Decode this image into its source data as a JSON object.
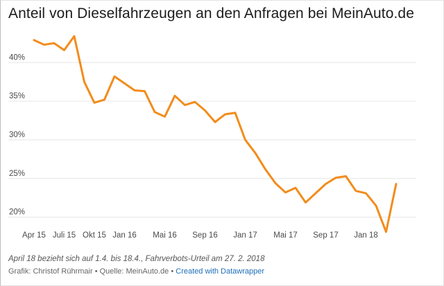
{
  "title": "Anteil von Dieselfahrzeugen an den Anfragen bei MeinAuto.de",
  "note": "April 18 bezieht sich auf 1.4. bis 18.4., Fahrverbots-Urteil am 27. 2. 2018",
  "credits": {
    "author": "Grafik: Christof Rührmair",
    "sep1": " • ",
    "source": "Quelle: MeinAuto.de",
    "sep2": " • ",
    "link": "Created with Datawrapper"
  },
  "colors": {
    "line": "#f28c1c",
    "grid": "#e6e6e6"
  },
  "chart_data": {
    "type": "line",
    "title": "Anteil von Dieselfahrzeugen an den Anfragen bei MeinAuto.de",
    "xlabel": "",
    "ylabel": "",
    "ylim": [
      18,
      44.5
    ],
    "y_ticks": [
      20,
      25,
      30,
      35,
      40
    ],
    "y_tick_labels": [
      "20%",
      "25%",
      "30%",
      "35%",
      "40%"
    ],
    "x_tick_labels": [
      "Apr 15",
      "Juli 15",
      "Okt 15",
      "Jan 16",
      "Mai 16",
      "Sep 16",
      "Jan 17",
      "Mai 17",
      "Sep 17",
      "Jan 18"
    ],
    "x_tick_positions": [
      0,
      3,
      6,
      9,
      13,
      17,
      21,
      25,
      29,
      33
    ],
    "grid": true,
    "legend": "none",
    "x": [
      "Apr 15",
      "Mai 15",
      "Jun 15",
      "Juli 15",
      "Aug 15",
      "Sep 15",
      "Okt 15",
      "Nov 15",
      "Dez 15",
      "Jan 16",
      "Feb 16",
      "Mär 16",
      "Apr 16",
      "Mai 16",
      "Jun 16",
      "Jul 16",
      "Aug 16",
      "Sep 16",
      "Okt 16",
      "Nov 16",
      "Dez 16",
      "Jan 17",
      "Feb 17",
      "Mär 17",
      "Apr 17",
      "Mai 17",
      "Jun 17",
      "Jul 17",
      "Aug 17",
      "Sep 17",
      "Okt 17",
      "Nov 17",
      "Dez 17",
      "Jan 18",
      "Feb 18",
      "Mär 18",
      "Apr 18"
    ],
    "series": [
      {
        "values": [
          42.9,
          42.3,
          42.5,
          41.6,
          43.4,
          37.5,
          34.8,
          35.2,
          38.2,
          37.3,
          36.4,
          36.3,
          33.6,
          33.0,
          35.7,
          34.5,
          34.9,
          33.8,
          32.3,
          33.3,
          33.5,
          30.0,
          28.3,
          26.2,
          24.4,
          23.2,
          23.8,
          21.9,
          23.1,
          24.3,
          25.1,
          25.3,
          23.4,
          23.1,
          21.5,
          18.1,
          24.3
        ]
      }
    ]
  }
}
